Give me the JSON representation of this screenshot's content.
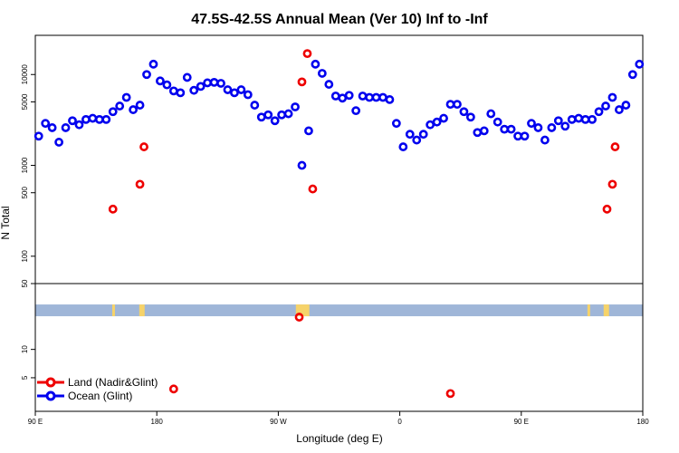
{
  "chart_data": {
    "type": "scatter",
    "title": "47.5S-42.5S Annual Mean (Ver 10)   Inf to -Inf",
    "xlabel": "Longitude (deg E)",
    "ylabel": "N Total",
    "x_range": [
      90,
      540
    ],
    "y_scale": "log",
    "y_ticks": [
      "5",
      "10",
      "50",
      "100",
      "500",
      "1000",
      "5000",
      "10000"
    ],
    "y_tick_values": [
      5,
      10,
      50,
      100,
      500,
      1000,
      5000,
      10000
    ],
    "x_ticks": [
      {
        "value": 90,
        "label": "90 E"
      },
      {
        "value": 180,
        "label": "180"
      },
      {
        "value": 270,
        "label": "90 W"
      },
      {
        "value": 360,
        "label": "0"
      },
      {
        "value": 450,
        "label": "90 E"
      },
      {
        "value": 540,
        "label": "180"
      }
    ],
    "colors": {
      "land": "#ee0000",
      "ocean": "#0000ee",
      "band": "#9fb6d8",
      "land_mask": "#f6d36a"
    },
    "legend": [
      {
        "name": "Land (Nadir&Glint)",
        "color": "#ee0000"
      },
      {
        "name": "Ocean (Glint)",
        "color": "#0000ee"
      }
    ],
    "land_mask_spans": [
      [
        147,
        149
      ],
      [
        167,
        171
      ],
      [
        283,
        293
      ],
      [
        499,
        501
      ],
      [
        511,
        515
      ]
    ],
    "series": [
      {
        "name": "Ocean (Glint)",
        "x": [
          92.5,
          97.5,
          102.5,
          107.5,
          112.5,
          117.5,
          122.5,
          127.5,
          132.5,
          137.5,
          142.5,
          147.5,
          152.5,
          157.5,
          162.5,
          167.5,
          172.5,
          177.5,
          182.5,
          187.5,
          192.5,
          197.5,
          202.5,
          207.5,
          212.5,
          217.5,
          222.5,
          227.5,
          232.5,
          237.5,
          242.5,
          247.5,
          252.5,
          257.5,
          262.5,
          267.5,
          272.5,
          277.5,
          282.5,
          287.5,
          292.5,
          297.5,
          302.5,
          307.5,
          312.5,
          317.5,
          322.5,
          327.5,
          332.5,
          337.5,
          342.5,
          347.5,
          352.5,
          357.5,
          362.5,
          367.5,
          372.5,
          377.5,
          382.5,
          387.5,
          392.5,
          397.5,
          402.5,
          407.5,
          412.5,
          417.5,
          422.5,
          427.5,
          432.5,
          437.5,
          442.5,
          447.5,
          452.5,
          457.5,
          462.5,
          467.5,
          472.5,
          477.5,
          482.5,
          487.5,
          492.5,
          497.5,
          502.5,
          507.5,
          512.5,
          517.5,
          522.5,
          527.5,
          532.5,
          537.5
        ],
        "values": [
          2100,
          2900,
          2600,
          1800,
          2600,
          3100,
          2800,
          3200,
          3300,
          3200,
          3200,
          3900,
          4500,
          5600,
          4100,
          4600,
          10000,
          13000,
          8500,
          7700,
          6600,
          6300,
          9300,
          6700,
          7400,
          8100,
          8200,
          8000,
          6800,
          6300,
          6800,
          6000,
          4600,
          3400,
          3600,
          3100,
          3600,
          3700,
          4400,
          1000,
          2400,
          13000,
          10300,
          7800,
          5800,
          5500,
          5900,
          4000,
          5800,
          5600,
          5600,
          5600,
          5300,
          2900,
          1600,
          2200,
          1900,
          2200,
          2800,
          3000,
          3300,
          4700,
          4700,
          3900,
          3400,
          2300,
          2400,
          3700,
          3000,
          2500,
          2500,
          2100,
          2100,
          2900,
          2600,
          1900,
          2600,
          3100,
          2700,
          3200,
          3300,
          3200,
          3200,
          3900,
          4500,
          5600,
          4100,
          4600,
          10000,
          13000
        ]
      },
      {
        "name": "Land (Nadir&Glint)",
        "x": [
          147.5,
          167.5,
          170.5,
          192.5,
          285.5,
          287.5,
          291.5,
          295.5,
          397.5,
          513.5,
          517.5,
          519.5
        ],
        "values": [
          330,
          620,
          1600,
          3.8,
          22,
          8300,
          17000,
          550,
          3.4,
          330,
          620,
          1600
        ]
      }
    ]
  }
}
